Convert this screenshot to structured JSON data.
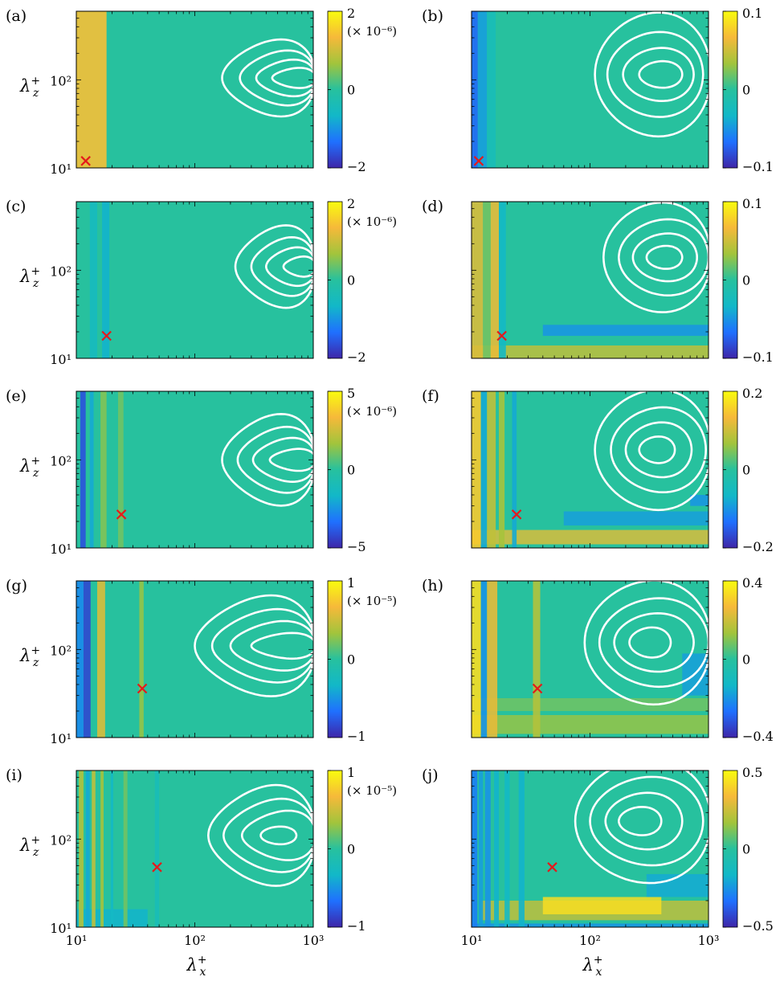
{
  "figure": {
    "x_label_base": "λ",
    "x_label_sub": "x",
    "y_label_base": "λ",
    "y_label_sub": "z",
    "label_sup": "+"
  },
  "colormap": [
    "#3e26a8",
    "#1f70ff",
    "#12b8c8",
    "#27c19e",
    "#a2c43c",
    "#f6b93a",
    "#f9fb0e"
  ],
  "chart_data": [
    {
      "panel": "(a)",
      "type": "heatmap",
      "xscale": "log",
      "yscale": "log",
      "xlim": [
        10,
        1000
      ],
      "ylim": [
        10,
        600
      ],
      "x_ticks": [],
      "y_ticks": [
        "10¹",
        "10²"
      ],
      "colorbar": {
        "range": [
          -2,
          2
        ],
        "ticks": [
          "2",
          "0",
          "−2"
        ],
        "factor": "(× 10⁻⁶)"
      },
      "marker": {
        "x": 12,
        "y": 12
      },
      "contours": [
        {
          "xmin": 170,
          "xmax": 1050,
          "ycenter": 105,
          "yhalf": 0.42,
          "lead": 0.3
        },
        {
          "xmin": 240,
          "xmax": 1050,
          "ycenter": 105,
          "yhalf": 0.3,
          "lead": 0.3
        },
        {
          "xmin": 330,
          "xmax": 1050,
          "ycenter": 105,
          "yhalf": 0.2,
          "lead": 0.3
        },
        {
          "xmin": 450,
          "xmax": 1050,
          "ycenter": 105,
          "yhalf": 0.11,
          "lead": 0.3
        }
      ],
      "stripes": [
        {
          "x0": 10,
          "x1": 18,
          "v": 0.7
        }
      ],
      "bands": []
    },
    {
      "panel": "(b)",
      "type": "heatmap",
      "xscale": "log",
      "yscale": "log",
      "xlim": [
        10,
        1000
      ],
      "ylim": [
        10,
        600
      ],
      "x_ticks": [],
      "y_ticks": [],
      "colorbar": {
        "range": [
          -0.1,
          0.1
        ],
        "ticks": [
          "0.1",
          "0",
          "−0.1"
        ],
        "factor": ""
      },
      "marker": {
        "x": 11.5,
        "y": 12
      },
      "contours": [
        {
          "xmin": 110,
          "xmax": 1050,
          "ycenter": 115,
          "yhalf": 0.7,
          "lead": 0.1
        },
        {
          "xmin": 140,
          "xmax": 900,
          "ycenter": 115,
          "yhalf": 0.48,
          "lead": 0.1
        },
        {
          "xmin": 190,
          "xmax": 750,
          "ycenter": 115,
          "yhalf": 0.3,
          "lead": 0.1
        },
        {
          "xmin": 260,
          "xmax": 600,
          "ycenter": 115,
          "yhalf": 0.15,
          "lead": 0.1
        }
      ],
      "stripes": [
        {
          "x0": 10,
          "x1": 11.3,
          "v": -0.7
        },
        {
          "x0": 11.3,
          "x1": 13.5,
          "v": -0.45
        },
        {
          "x0": 13.5,
          "x1": 16,
          "v": -0.2
        }
      ],
      "bands": []
    },
    {
      "panel": "(c)",
      "type": "heatmap",
      "xscale": "log",
      "yscale": "log",
      "xlim": [
        10,
        1000
      ],
      "ylim": [
        10,
        600
      ],
      "x_ticks": [],
      "y_ticks": [
        "10¹",
        "10²"
      ],
      "colorbar": {
        "range": [
          -2,
          2
        ],
        "ticks": [
          "2",
          "0",
          "−2"
        ],
        "factor": "(× 10⁻⁶)"
      },
      "marker": {
        "x": 18,
        "y": 18
      },
      "contours": [
        {
          "xmin": 220,
          "xmax": 1050,
          "ycenter": 110,
          "yhalf": 0.45,
          "lead": 0.3
        },
        {
          "xmin": 300,
          "xmax": 1050,
          "ycenter": 110,
          "yhalf": 0.32,
          "lead": 0.3
        },
        {
          "xmin": 400,
          "xmax": 1050,
          "ycenter": 110,
          "yhalf": 0.21,
          "lead": 0.3
        },
        {
          "xmin": 560,
          "xmax": 1050,
          "ycenter": 110,
          "yhalf": 0.11,
          "lead": 0.3
        }
      ],
      "stripes": [
        {
          "x0": 13,
          "x1": 15,
          "v": -0.25
        },
        {
          "x0": 16.5,
          "x1": 19,
          "v": -0.35
        }
      ],
      "bands": []
    },
    {
      "panel": "(d)",
      "type": "heatmap",
      "xscale": "log",
      "yscale": "log",
      "xlim": [
        10,
        1000
      ],
      "ylim": [
        10,
        600
      ],
      "x_ticks": [],
      "y_ticks": [],
      "colorbar": {
        "range": [
          -0.1,
          0.1
        ],
        "ticks": [
          "0.1",
          "0",
          "−0.1"
        ],
        "factor": ""
      },
      "marker": {
        "x": 18,
        "y": 18
      },
      "contours": [
        {
          "xmin": 130,
          "xmax": 1050,
          "ycenter": 140,
          "yhalf": 0.62,
          "lead": 0.1
        },
        {
          "xmin": 175,
          "xmax": 1000,
          "ycenter": 140,
          "yhalf": 0.43,
          "lead": 0.1
        },
        {
          "xmin": 230,
          "xmax": 800,
          "ycenter": 140,
          "yhalf": 0.27,
          "lead": 0.1
        },
        {
          "xmin": 300,
          "xmax": 600,
          "ycenter": 140,
          "yhalf": 0.13,
          "lead": 0.1
        }
      ],
      "stripes": [
        {
          "x0": 10,
          "x1": 12.5,
          "v": 0.55
        },
        {
          "x0": 12.5,
          "x1": 14.5,
          "v": 0.2
        },
        {
          "x0": 14.5,
          "x1": 17,
          "v": 0.6
        },
        {
          "x0": 17,
          "x1": 19.5,
          "v": -0.3
        }
      ],
      "bands": [
        {
          "x0": 10,
          "x1": 1000,
          "y0": 10,
          "y1": 14,
          "v": 0.45
        },
        {
          "x0": 40,
          "x1": 1000,
          "y0": 18,
          "y1": 24,
          "v": -0.5
        }
      ]
    },
    {
      "panel": "(e)",
      "type": "heatmap",
      "xscale": "log",
      "yscale": "log",
      "xlim": [
        10,
        1000
      ],
      "ylim": [
        10,
        600
      ],
      "x_ticks": [],
      "y_ticks": [
        "10¹",
        "10²"
      ],
      "colorbar": {
        "range": [
          -5,
          5
        ],
        "ticks": [
          "5",
          "0",
          "−5"
        ],
        "factor": "(× 10⁻⁶)"
      },
      "marker": {
        "x": 24,
        "y": 24
      },
      "contours": [
        {
          "xmin": 170,
          "xmax": 1050,
          "ycenter": 100,
          "yhalf": 0.5,
          "lead": 0.3
        },
        {
          "xmin": 230,
          "xmax": 1050,
          "ycenter": 100,
          "yhalf": 0.36,
          "lead": 0.3
        },
        {
          "xmin": 310,
          "xmax": 1050,
          "ycenter": 100,
          "yhalf": 0.24,
          "lead": 0.3
        },
        {
          "xmin": 430,
          "xmax": 1050,
          "ycenter": 100,
          "yhalf": 0.12,
          "lead": 0.3
        }
      ],
      "stripes": [
        {
          "x0": 10.8,
          "x1": 12,
          "v": -0.8
        },
        {
          "x0": 13,
          "x1": 14,
          "v": -0.4
        },
        {
          "x0": 16,
          "x1": 18,
          "v": 0.25
        },
        {
          "x0": 22.5,
          "x1": 25,
          "v": 0.2
        }
      ],
      "bands": []
    },
    {
      "panel": "(f)",
      "type": "heatmap",
      "xscale": "log",
      "yscale": "log",
      "xlim": [
        10,
        1000
      ],
      "ylim": [
        10,
        600
      ],
      "x_ticks": [],
      "y_ticks": [],
      "colorbar": {
        "range": [
          -0.2,
          0.2
        ],
        "ticks": [
          "0.2",
          "0",
          "−0.2"
        ],
        "factor": ""
      },
      "marker": {
        "x": 24,
        "y": 24
      },
      "contours": [
        {
          "xmin": 110,
          "xmax": 1050,
          "ycenter": 130,
          "yhalf": 0.68,
          "lead": 0.1
        },
        {
          "xmin": 150,
          "xmax": 950,
          "ycenter": 130,
          "yhalf": 0.48,
          "lead": 0.1
        },
        {
          "xmin": 200,
          "xmax": 720,
          "ycenter": 130,
          "yhalf": 0.31,
          "lead": 0.1
        },
        {
          "xmin": 260,
          "xmax": 520,
          "ycenter": 130,
          "yhalf": 0.15,
          "lead": 0.1
        }
      ],
      "stripes": [
        {
          "x0": 10,
          "x1": 12,
          "v": 0.75
        },
        {
          "x0": 12,
          "x1": 13.5,
          "v": -0.4
        },
        {
          "x0": 13.5,
          "x1": 16,
          "v": 0.45
        },
        {
          "x0": 17,
          "x1": 19,
          "v": 0.35
        },
        {
          "x0": 22,
          "x1": 24,
          "v": -0.4
        }
      ],
      "bands": [
        {
          "x0": 10,
          "x1": 1000,
          "y0": 11,
          "y1": 16,
          "v": 0.55
        },
        {
          "x0": 60,
          "x1": 1000,
          "y0": 18,
          "y1": 26,
          "v": -0.45
        },
        {
          "x0": 700,
          "x1": 1000,
          "y0": 30,
          "y1": 40,
          "v": -0.5
        }
      ]
    },
    {
      "panel": "(g)",
      "type": "heatmap",
      "xscale": "log",
      "yscale": "log",
      "xlim": [
        10,
        1000
      ],
      "ylim": [
        10,
        600
      ],
      "x_ticks": [],
      "y_ticks": [
        "10¹",
        "10²"
      ],
      "colorbar": {
        "range": [
          -1,
          1
        ],
        "ticks": [
          "1",
          "0",
          "−1"
        ],
        "factor": "(× 10⁻⁵)"
      },
      "marker": {
        "x": 36,
        "y": 36
      },
      "contours": [
        {
          "xmin": 100,
          "xmax": 1050,
          "ycenter": 110,
          "yhalf": 0.55,
          "lead": 0.3
        },
        {
          "xmin": 140,
          "xmax": 1050,
          "ycenter": 110,
          "yhalf": 0.4,
          "lead": 0.3
        },
        {
          "xmin": 200,
          "xmax": 1050,
          "ycenter": 110,
          "yhalf": 0.27,
          "lead": 0.3
        },
        {
          "xmin": 300,
          "xmax": 1050,
          "ycenter": 110,
          "yhalf": 0.14,
          "lead": 0.3
        }
      ],
      "stripes": [
        {
          "x0": 10,
          "x1": 11.5,
          "v": -0.55
        },
        {
          "x0": 11.5,
          "x1": 13.2,
          "v": -0.85
        },
        {
          "x0": 15,
          "x1": 17.5,
          "v": 0.55
        },
        {
          "x0": 34,
          "x1": 37,
          "v": 0.3
        }
      ],
      "bands": []
    },
    {
      "panel": "(h)",
      "type": "heatmap",
      "xscale": "log",
      "yscale": "log",
      "xlim": [
        10,
        1000
      ],
      "ylim": [
        10,
        600
      ],
      "x_ticks": [],
      "y_ticks": [],
      "colorbar": {
        "range": [
          -0.4,
          0.4
        ],
        "ticks": [
          "0.4",
          "0",
          "−0.4"
        ],
        "factor": ""
      },
      "marker": {
        "x": 36,
        "y": 36
      },
      "contours": [
        {
          "xmin": 90,
          "xmax": 1050,
          "ycenter": 120,
          "yhalf": 0.7,
          "lead": 0.1
        },
        {
          "xmin": 120,
          "xmax": 1000,
          "ycenter": 120,
          "yhalf": 0.5,
          "lead": 0.1
        },
        {
          "xmin": 160,
          "xmax": 750,
          "ycenter": 120,
          "yhalf": 0.33,
          "lead": 0.1
        },
        {
          "xmin": 215,
          "xmax": 480,
          "ycenter": 120,
          "yhalf": 0.17,
          "lead": 0.1
        }
      ],
      "stripes": [
        {
          "x0": 10,
          "x1": 12,
          "v": 0.85
        },
        {
          "x0": 12,
          "x1": 13.5,
          "v": -0.5
        },
        {
          "x0": 13.5,
          "x1": 16.5,
          "v": 0.6
        },
        {
          "x0": 33,
          "x1": 38,
          "v": 0.4
        }
      ],
      "bands": [
        {
          "x0": 10,
          "x1": 1000,
          "y0": 11,
          "y1": 18,
          "v": 0.3
        },
        {
          "x0": 10,
          "x1": 1000,
          "y0": 20,
          "y1": 28,
          "v": 0.2
        },
        {
          "x0": 600,
          "x1": 1000,
          "y0": 30,
          "y1": 90,
          "v": -0.45
        }
      ]
    },
    {
      "panel": "(i)",
      "type": "heatmap",
      "xscale": "log",
      "yscale": "log",
      "xlim": [
        10,
        1000
      ],
      "ylim": [
        10,
        600
      ],
      "x_ticks": [
        "10¹",
        "10²",
        "10³"
      ],
      "y_ticks": [
        "10¹",
        "10²"
      ],
      "colorbar": {
        "range": [
          -1,
          1
        ],
        "ticks": [
          "1",
          "0",
          "−1"
        ],
        "factor": "(× 10⁻⁵)"
      },
      "marker": {
        "x": 48,
        "y": 48
      },
      "contours": [
        {
          "xmin": 130,
          "xmax": 1050,
          "ycenter": 110,
          "yhalf": 0.55,
          "lead": 0.3
        },
        {
          "xmin": 175,
          "xmax": 1050,
          "ycenter": 110,
          "yhalf": 0.4,
          "lead": 0.3
        },
        {
          "xmin": 250,
          "xmax": 1050,
          "ycenter": 110,
          "yhalf": 0.27,
          "lead": 0.3
        },
        {
          "xmin": 360,
          "xmax": 720,
          "ycenter": 110,
          "yhalf": 0.1,
          "lead": 0.1
        }
      ],
      "stripes": [
        {
          "x0": 10.5,
          "x1": 11.5,
          "v": 0.4
        },
        {
          "x0": 12,
          "x1": 13,
          "v": -0.4
        },
        {
          "x0": 13.5,
          "x1": 14.5,
          "v": 0.45
        },
        {
          "x0": 16,
          "x1": 17,
          "v": 0.35
        },
        {
          "x0": 19.5,
          "x1": 20.5,
          "v": -0.3
        },
        {
          "x0": 25,
          "x1": 27,
          "v": 0.2
        },
        {
          "x0": 46,
          "x1": 50,
          "v": -0.2
        }
      ],
      "bands": [
        {
          "x0": 10,
          "x1": 40,
          "y0": 10,
          "y1": 16,
          "v": -0.35
        }
      ]
    },
    {
      "panel": "(j)",
      "type": "heatmap",
      "xscale": "log",
      "yscale": "log",
      "xlim": [
        10,
        1000
      ],
      "ylim": [
        10,
        600
      ],
      "x_ticks": [
        "10¹",
        "10²",
        "10³"
      ],
      "y_ticks": [],
      "colorbar": {
        "range": [
          -0.5,
          0.5
        ],
        "ticks": [
          "0.5",
          "0",
          "−0.5"
        ],
        "factor": ""
      },
      "marker": {
        "x": 48,
        "y": 48
      },
      "contours": [
        {
          "xmin": 75,
          "xmax": 1050,
          "ycenter": 160,
          "yhalf": 0.7,
          "lead": 0.1
        },
        {
          "xmin": 100,
          "xmax": 900,
          "ycenter": 160,
          "yhalf": 0.5,
          "lead": 0.1
        },
        {
          "xmin": 135,
          "xmax": 600,
          "ycenter": 160,
          "yhalf": 0.32,
          "lead": 0.1
        },
        {
          "xmin": 175,
          "xmax": 400,
          "ycenter": 160,
          "yhalf": 0.16,
          "lead": 0.1
        }
      ],
      "stripes": [
        {
          "x0": 10,
          "x1": 11.2,
          "v": -0.6
        },
        {
          "x0": 11.5,
          "x1": 12.5,
          "v": -0.45
        },
        {
          "x0": 13,
          "x1": 14.5,
          "v": -0.5
        },
        {
          "x0": 15.5,
          "x1": 17,
          "v": -0.35
        },
        {
          "x0": 19,
          "x1": 21,
          "v": -0.3
        },
        {
          "x0": 25,
          "x1": 28,
          "v": -0.35
        }
      ],
      "bands": [
        {
          "x0": 12,
          "x1": 1000,
          "y0": 12,
          "y1": 20,
          "v": 0.45
        },
        {
          "x0": 40,
          "x1": 400,
          "y0": 14,
          "y1": 22,
          "v": 0.85
        },
        {
          "x0": 300,
          "x1": 1000,
          "y0": 22,
          "y1": 40,
          "v": -0.4
        },
        {
          "x0": 10,
          "x1": 1000,
          "y0": 10,
          "y1": 11,
          "v": -0.5
        }
      ]
    }
  ]
}
